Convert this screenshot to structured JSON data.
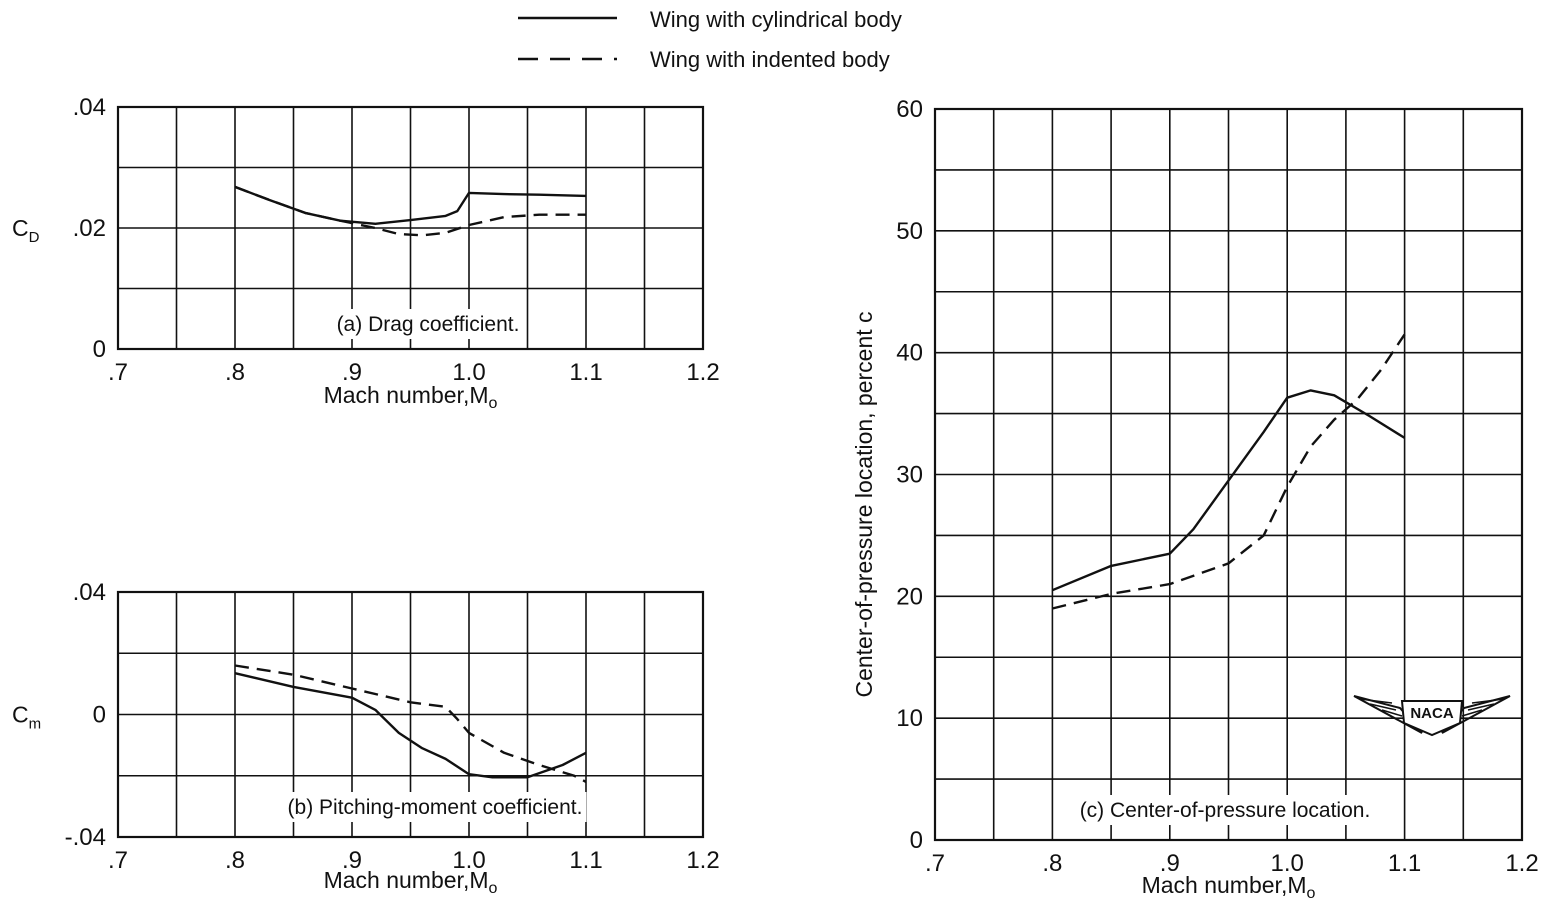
{
  "legend": {
    "items": [
      {
        "label": "Wing with cylindrical body",
        "style": "solid"
      },
      {
        "label": "Wing with indented body",
        "style": "dashed"
      }
    ]
  },
  "badge_text": "NACA",
  "colors": {
    "ink": "#111111",
    "grid": "#111111",
    "background": "#ffffff"
  },
  "chart_data": [
    {
      "id": "a",
      "type": "line",
      "caption": "(a) Drag coefficient.",
      "ylabel_main": "C",
      "ylabel_sub": "D",
      "xlabel": "Mach number,M",
      "xlabel_sub": "o",
      "xlim": [
        0.7,
        1.2
      ],
      "ylim": [
        0,
        0.04
      ],
      "x_ticks": [
        ".7",
        ".8",
        ".9",
        "1.0",
        "1.1",
        "1.2"
      ],
      "y_ticks": [
        {
          "value": 0.04,
          "label": ".04"
        },
        {
          "value": 0.02,
          "label": ".02"
        },
        {
          "value": 0,
          "label": "0"
        }
      ],
      "grid": true,
      "series": [
        {
          "name": "Wing with cylindrical body",
          "style": "solid",
          "x": [
            0.8,
            0.83,
            0.86,
            0.89,
            0.92,
            0.95,
            0.98,
            0.99,
            1.0,
            1.03,
            1.06,
            1.1
          ],
          "y": [
            0.0268,
            0.0246,
            0.0225,
            0.0212,
            0.0207,
            0.0213,
            0.022,
            0.0228,
            0.0258,
            0.0256,
            0.0255,
            0.0253
          ]
        },
        {
          "name": "Wing with indented body",
          "style": "dashed",
          "x": [
            0.8,
            0.83,
            0.86,
            0.89,
            0.92,
            0.94,
            0.96,
            0.98,
            1.0,
            1.03,
            1.06,
            1.1
          ],
          "y": [
            0.0268,
            0.0246,
            0.0225,
            0.0212,
            0.02,
            0.019,
            0.0188,
            0.0192,
            0.0205,
            0.0218,
            0.0222,
            0.0222
          ]
        }
      ]
    },
    {
      "id": "b",
      "type": "line",
      "caption": "(b) Pitching-moment coefficient.",
      "ylabel_main": "C",
      "ylabel_sub": "m",
      "xlabel": "Mach number,M",
      "xlabel_sub": "o",
      "xlim": [
        0.7,
        1.2
      ],
      "ylim": [
        -0.04,
        0.04
      ],
      "x_ticks": [
        ".7",
        ".8",
        ".9",
        "1.0",
        "1.1",
        "1.2"
      ],
      "y_ticks": [
        {
          "value": 0.04,
          "label": ".04"
        },
        {
          "value": 0,
          "label": "0"
        },
        {
          "value": -0.04,
          "label": "-.04"
        }
      ],
      "grid": true,
      "series": [
        {
          "name": "Wing with cylindrical body",
          "style": "solid",
          "x": [
            0.8,
            0.85,
            0.9,
            0.92,
            0.94,
            0.96,
            0.98,
            1.0,
            1.02,
            1.05,
            1.08,
            1.1
          ],
          "y": [
            0.0135,
            0.009,
            0.0055,
            0.0015,
            -0.006,
            -0.011,
            -0.0145,
            -0.0195,
            -0.0205,
            -0.0205,
            -0.0165,
            -0.0125
          ]
        },
        {
          "name": "Wing with indented body",
          "style": "dashed",
          "x": [
            0.8,
            0.85,
            0.9,
            0.95,
            0.98,
            0.99,
            1.0,
            1.03,
            1.06,
            1.09,
            1.1
          ],
          "y": [
            0.016,
            0.013,
            0.0085,
            0.004,
            0.0025,
            -0.0015,
            -0.006,
            -0.0125,
            -0.0165,
            -0.02,
            -0.022
          ]
        }
      ]
    },
    {
      "id": "c",
      "type": "line",
      "caption": "(c) Center-of-pressure location.",
      "ylabel": "Center-of-pressure location, percent c",
      "xlabel": "Mach number,M",
      "xlabel_sub": "o",
      "xlim": [
        0.7,
        1.2
      ],
      "ylim": [
        0,
        60
      ],
      "x_ticks": [
        ".7",
        ".8",
        ".9",
        "1.0",
        "1.1",
        "1.2"
      ],
      "y_ticks": [
        {
          "value": 60,
          "label": "60"
        },
        {
          "value": 50,
          "label": "50"
        },
        {
          "value": 40,
          "label": "40"
        },
        {
          "value": 30,
          "label": "30"
        },
        {
          "value": 20,
          "label": "20"
        },
        {
          "value": 10,
          "label": "10"
        },
        {
          "value": 0,
          "label": "0"
        }
      ],
      "grid": true,
      "series": [
        {
          "name": "Wing with cylindrical body",
          "style": "solid",
          "x": [
            0.8,
            0.85,
            0.9,
            0.92,
            0.95,
            0.98,
            1.0,
            1.02,
            1.04,
            1.07,
            1.1
          ],
          "y": [
            20.5,
            22.5,
            23.5,
            25.5,
            29.5,
            33.5,
            36.3,
            36.9,
            36.5,
            34.8,
            33.0
          ]
        },
        {
          "name": "Wing with indented body",
          "style": "dashed",
          "x": [
            0.8,
            0.85,
            0.9,
            0.95,
            0.98,
            1.0,
            1.02,
            1.04,
            1.06,
            1.08,
            1.1
          ],
          "y": [
            19.0,
            20.2,
            21.0,
            22.7,
            25.0,
            29.0,
            32.3,
            34.5,
            36.2,
            38.6,
            41.5
          ]
        }
      ]
    }
  ]
}
